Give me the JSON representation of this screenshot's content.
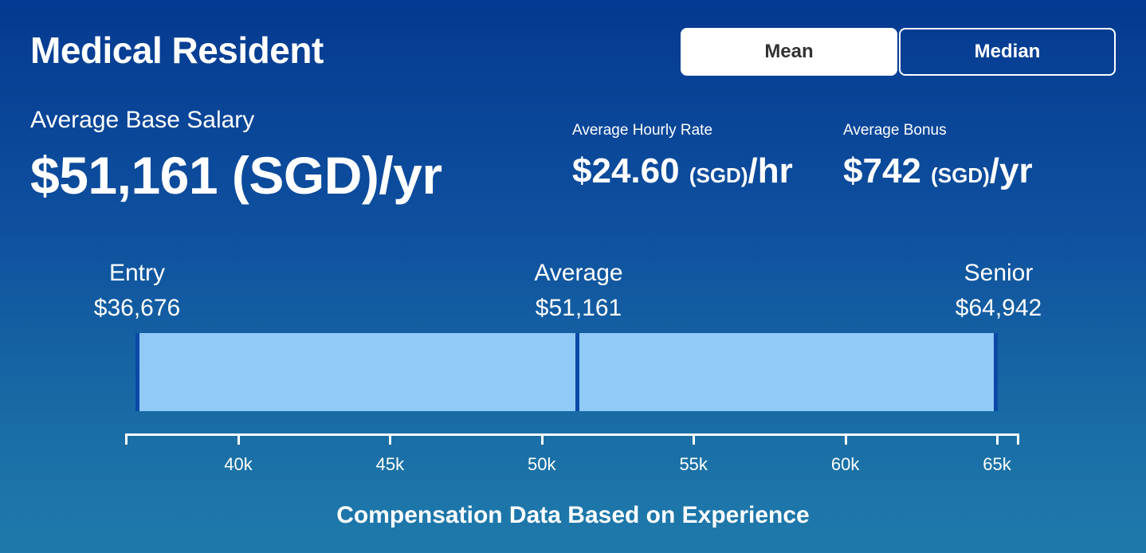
{
  "title": "Medical Resident",
  "toggle": {
    "mean_label": "Mean",
    "median_label": "Median",
    "selected": "Mean"
  },
  "base": {
    "label": "Average Base Salary",
    "value": "$51,161 (SGD)/yr"
  },
  "hourly": {
    "label": "Average Hourly Rate",
    "amount": "$24.60",
    "currency": "(SGD)",
    "unit": "/hr"
  },
  "bonus": {
    "label": "Average Bonus",
    "amount": "$742",
    "currency": "(SGD)",
    "unit": "/yr"
  },
  "markers": {
    "entry": {
      "label": "Entry",
      "value": "$36,676"
    },
    "average": {
      "label": "Average",
      "value": "$51,161"
    },
    "senior": {
      "label": "Senior",
      "value": "$64,942"
    }
  },
  "chart_data": {
    "type": "bar",
    "range": {
      "min": 36676,
      "average": 51161,
      "max": 64942
    },
    "xlim": [
      36676,
      64942
    ],
    "ticks": [
      {
        "value": 40000,
        "label": "40k"
      },
      {
        "value": 45000,
        "label": "45k"
      },
      {
        "value": 50000,
        "label": "50k"
      },
      {
        "value": 55000,
        "label": "55k"
      },
      {
        "value": 60000,
        "label": "60k"
      },
      {
        "value": 65000,
        "label": "65k"
      }
    ],
    "colors": {
      "bar": "#91c9f7",
      "marker": "#0a49a5"
    }
  },
  "footer": "Compensation Data Based on Experience"
}
